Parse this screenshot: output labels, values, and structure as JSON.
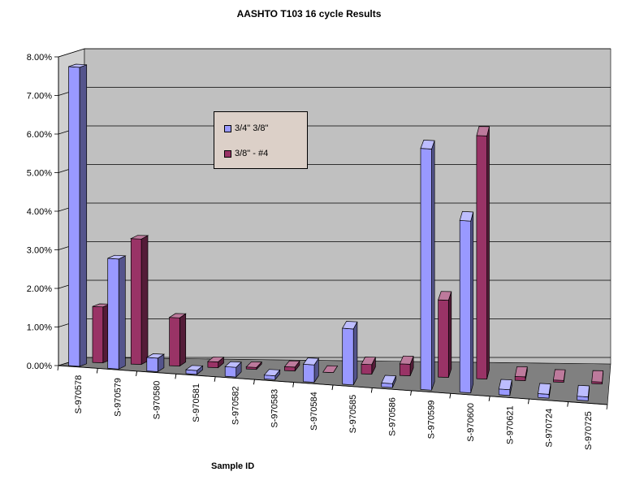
{
  "chart_data": {
    "type": "bar",
    "title": "AASHTO T103 16 cycle Results",
    "xlabel": "Sample  ID",
    "ylabel": "",
    "ylim": [
      0,
      0.08
    ],
    "y_ticks": [
      "0.00%",
      "1.00%",
      "2.00%",
      "3.00%",
      "4.00%",
      "5.00%",
      "6.00%",
      "7.00%",
      "8.00%"
    ],
    "categories": [
      "S-970578",
      "S-970579",
      "S-970580",
      "S-970581",
      "S-970582",
      "S-970583",
      "S-970584",
      "S-970585",
      "S-970586",
      "S-970599",
      "S-970600",
      "S-970621",
      "S-970724",
      "S-970725"
    ],
    "series": [
      {
        "name": "3/4\" 3/8\"",
        "color": "#9999ff",
        "values": [
          0.0775,
          0.0285,
          0.0035,
          0.001,
          0.0025,
          0.001,
          0.0045,
          0.0145,
          0.001,
          0.0625,
          0.0445,
          0.0015,
          0.001,
          0.001
        ]
      },
      {
        "name": "3/8\" - #4",
        "color": "#993366",
        "values": [
          0.0145,
          0.0325,
          0.0125,
          0.0015,
          0.0005,
          0.001,
          0.0,
          0.0025,
          0.003,
          0.02,
          0.063,
          0.001,
          0.0005,
          0.0005
        ]
      }
    ],
    "legend_position": "upper-left-inside",
    "grid": true
  }
}
